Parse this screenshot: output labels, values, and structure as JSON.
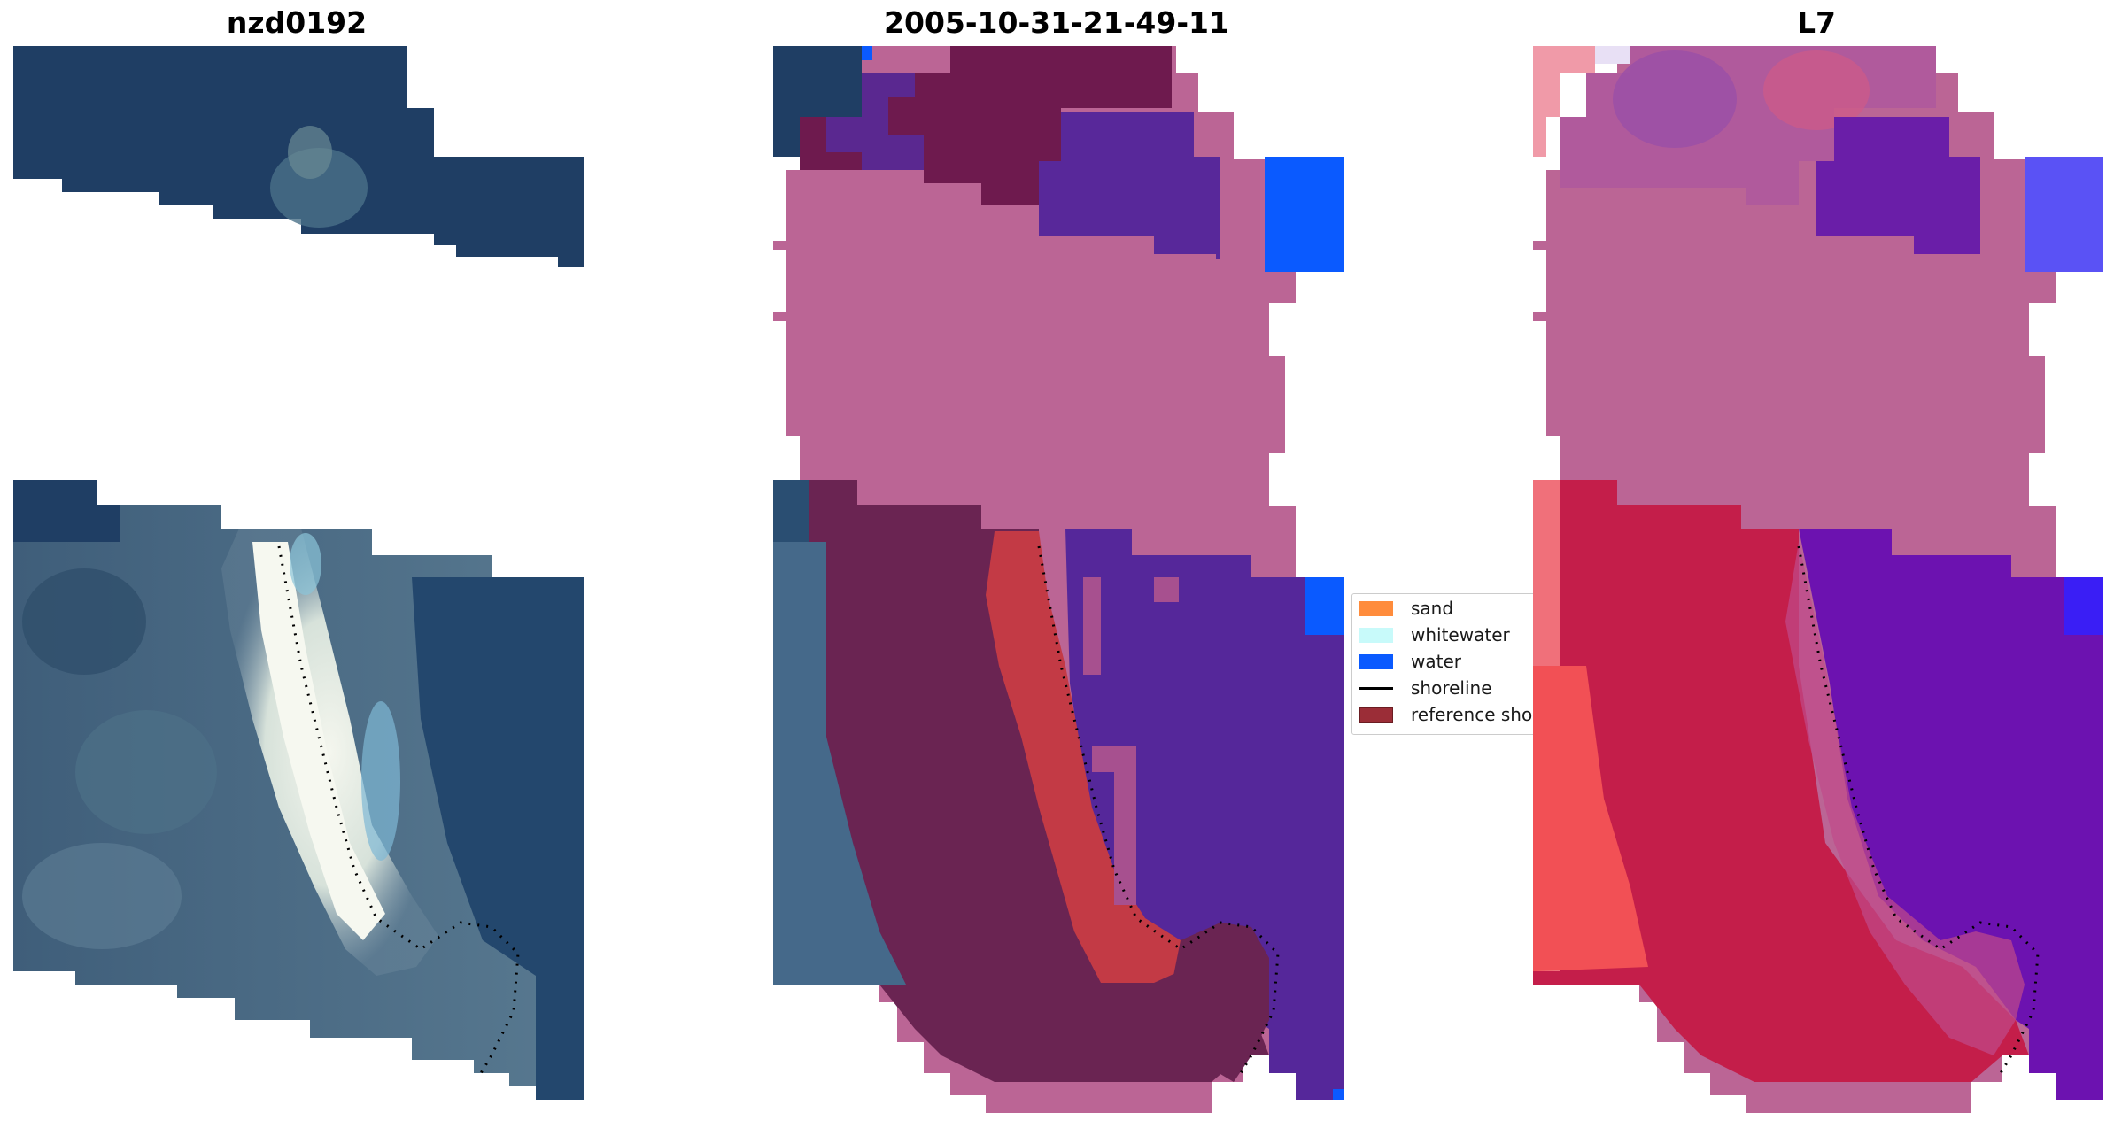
{
  "panels": [
    {
      "title": "nzd0192"
    },
    {
      "title": "2005-10-31-21-49-11"
    },
    {
      "title": "L7"
    }
  ],
  "legend": {
    "items": [
      {
        "label": "sand",
        "color": "#ff8c3c",
        "kind": "patch"
      },
      {
        "label": "whitewater",
        "color": "#c8fafa",
        "kind": "patch"
      },
      {
        "label": "water",
        "color": "#0a5aff",
        "kind": "patch"
      },
      {
        "label": "shoreline",
        "color": "#000000",
        "kind": "line"
      },
      {
        "label": "reference shoreline",
        "color": "#9b2d37",
        "kind": "patch"
      }
    ]
  }
}
